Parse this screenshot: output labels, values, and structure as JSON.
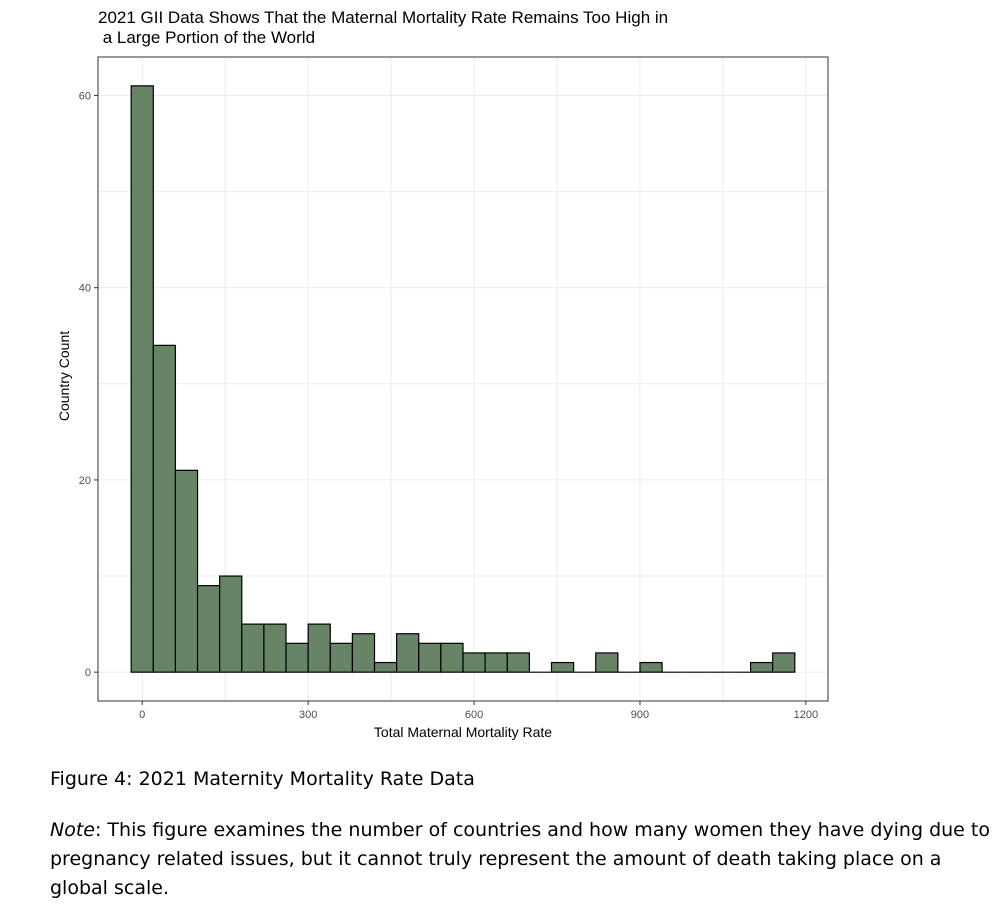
{
  "chart_data": {
    "type": "bar",
    "title_line1": "2021 GII Data Shows That the Maternal Mortality Rate Remains Too High in",
    "title_line2": " a Large Portion of the World",
    "xlabel": "Total Maternal Mortality Rate",
    "ylabel": "Country Count",
    "xlim": [
      -80,
      1240
    ],
    "ylim": [
      -3,
      64
    ],
    "x_ticks": [
      0,
      300,
      600,
      900,
      1200
    ],
    "y_ticks": [
      0,
      20,
      40,
      60
    ],
    "bin_width": 40,
    "bins_start": [
      -20,
      20,
      60,
      100,
      140,
      180,
      220,
      260,
      300,
      340,
      380,
      420,
      460,
      500,
      540,
      580,
      620,
      660,
      700,
      740,
      780,
      820,
      860,
      900,
      940,
      980,
      1020,
      1060,
      1100,
      1140
    ],
    "values": [
      61,
      34,
      21,
      9,
      10,
      5,
      5,
      3,
      5,
      3,
      4,
      1,
      4,
      3,
      3,
      2,
      2,
      2,
      0,
      1,
      0,
      2,
      0,
      1,
      0,
      0,
      0,
      0,
      1,
      2
    ],
    "bar_color": "#678566",
    "bar_edge_color": "#000000",
    "grid": true,
    "gridline_color": "#ebebeb"
  },
  "caption": {
    "figure_label": "Figure 4: 2021 Maternity Mortality Rate Data",
    "note_label": "Note",
    "note_text": ": This figure examines the number of countries and how many women they have dying due to pregnancy related issues, but it cannot truly represent the amount of death taking place on a global scale."
  }
}
